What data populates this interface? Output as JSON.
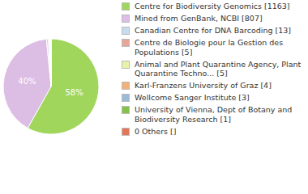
{
  "chart_data": {
    "type": "pie",
    "categories": [
      "Centre for Biodiversity Genomics [1163]",
      "Mined from GenBank, NCBI [807]",
      "Canadian Centre for DNA Barcoding [13]",
      "Centre de Biologie pour la Gestion des Populations [5]",
      "Animal and Plant Quarantine Agency, Plant Quarantine Techno... [5]",
      "Karl-Franzens University of Graz [4]",
      "Wellcome Sanger Institute [3]",
      "University of Vienna, Dept of Botany and Biodiversity Research [1]",
      "0 Others []"
    ],
    "values": [
      1163,
      807,
      13,
      5,
      5,
      4,
      3,
      1,
      0
    ],
    "slice_labels": [
      "58%",
      "40%",
      null,
      null,
      null,
      null,
      null,
      null,
      null
    ],
    "colors": [
      "#a0d65c",
      "#dcbde3",
      "#c9dcee",
      "#e8a59a",
      "#e9f2a6",
      "#f2b07a",
      "#9cb9d8",
      "#86c24a",
      "#e2775a"
    ],
    "legend": "right"
  }
}
